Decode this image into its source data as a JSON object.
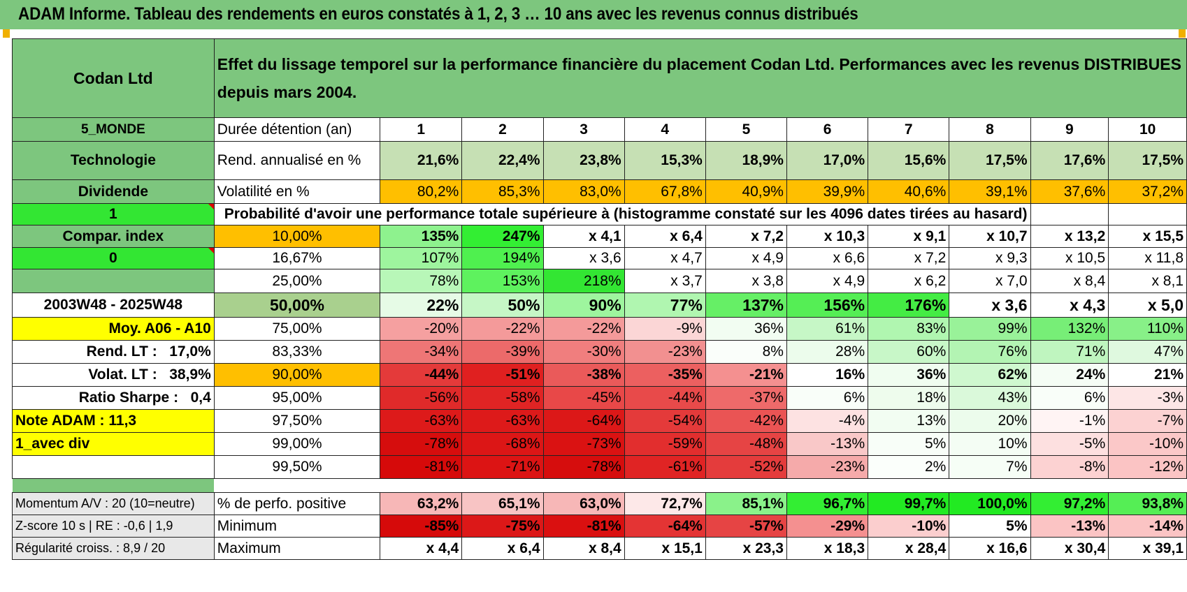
{
  "header": {
    "title": "ADAM Informe. Tableau des rendements en euros constatés à 1, 2, 3 … 10 ans avec les revenus connus distribués"
  },
  "left": {
    "company": "Codan Ltd",
    "region": "5_MONDE",
    "sector": "Technologie",
    "dividend": "Dividende",
    "flag1": "1",
    "compar_index": "Compar. index",
    "flag0": "0",
    "period": "2003W48 - 2025W48",
    "moy": "Moy. A06 - A10",
    "rend_lt_label": "Rend. LT :",
    "rend_lt_value": "17,0%",
    "volat_lt_label": "Volat. LT :",
    "volat_lt_value": "38,9%",
    "sharpe_label": "Ratio Sharpe :",
    "sharpe_value": "0,4",
    "note_adam": "Note ADAM : 11,3",
    "avec_div": "1_avec div",
    "momentum": "Momentum A/V : 20 (10=neutre)",
    "zscore": "Z-score 10 s | RE : -0,6 | 1,9",
    "regularite": "Régularité croiss. : 8,9 / 20"
  },
  "main": {
    "title": "Effet du lissage temporel sur la performance financière du placement Codan Ltd. Performances avec les revenus DISTRIBUES depuis mars 2004.",
    "duree_label": "Durée détention (an)",
    "years": [
      "1",
      "2",
      "3",
      "4",
      "5",
      "6",
      "7",
      "8",
      "9",
      "10"
    ],
    "rend_label": "Rend. annualisé en %",
    "rend": [
      "21,6%",
      "22,4%",
      "23,8%",
      "15,3%",
      "18,9%",
      "17,0%",
      "15,6%",
      "17,5%",
      "17,6%",
      "17,5%"
    ],
    "vol_label": "Volatilité en %",
    "vol": [
      "80,2%",
      "85,3%",
      "83,0%",
      "67,8%",
      "40,9%",
      "39,9%",
      "40,6%",
      "39,1%",
      "37,6%",
      "37,2%"
    ],
    "proba_title": "Probabilité d'avoir une performance totale supérieure à (histogramme constaté sur les 4096 dates tirées au hasard)",
    "prob_rows": [
      {
        "p": "10,00%",
        "v": [
          "135%",
          "247%",
          "x 4,1",
          "x 6,4",
          "x 7,2",
          "x 10,3",
          "x 9,1",
          "x 10,7",
          "x 13,2",
          "x 15,5"
        ]
      },
      {
        "p": "16,67%",
        "v": [
          "107%",
          "194%",
          "x 3,6",
          "x 4,7",
          "x 4,9",
          "x 6,6",
          "x 7,2",
          "x 9,3",
          "x 10,5",
          "x 11,8"
        ]
      },
      {
        "p": "25,00%",
        "v": [
          "78%",
          "153%",
          "218%",
          "x 3,7",
          "x 3,8",
          "x 4,9",
          "x 6,2",
          "x 7,0",
          "x 8,4",
          "x 8,1"
        ]
      },
      {
        "p": "50,00%",
        "v": [
          "22%",
          "50%",
          "90%",
          "77%",
          "137%",
          "156%",
          "176%",
          "x 3,6",
          "x 4,3",
          "x 5,0"
        ]
      },
      {
        "p": "75,00%",
        "v": [
          "-20%",
          "-22%",
          "-22%",
          "-9%",
          "36%",
          "61%",
          "83%",
          "99%",
          "132%",
          "110%"
        ]
      },
      {
        "p": "83,33%",
        "v": [
          "-34%",
          "-39%",
          "-30%",
          "-23%",
          "8%",
          "28%",
          "60%",
          "76%",
          "71%",
          "47%"
        ]
      },
      {
        "p": "90,00%",
        "v": [
          "-44%",
          "-51%",
          "-38%",
          "-35%",
          "-21%",
          "16%",
          "36%",
          "62%",
          "24%",
          "21%"
        ]
      },
      {
        "p": "95,00%",
        "v": [
          "-56%",
          "-58%",
          "-45%",
          "-44%",
          "-37%",
          "6%",
          "18%",
          "43%",
          "6%",
          "-3%"
        ]
      },
      {
        "p": "97,50%",
        "v": [
          "-63%",
          "-63%",
          "-64%",
          "-54%",
          "-42%",
          "-4%",
          "13%",
          "20%",
          "-1%",
          "-7%"
        ]
      },
      {
        "p": "99,00%",
        "v": [
          "-78%",
          "-68%",
          "-73%",
          "-59%",
          "-48%",
          "-13%",
          "5%",
          "10%",
          "-5%",
          "-10%"
        ]
      },
      {
        "p": "99,50%",
        "v": [
          "-81%",
          "-71%",
          "-78%",
          "-61%",
          "-52%",
          "-23%",
          "2%",
          "7%",
          "-8%",
          "-12%"
        ]
      }
    ],
    "pos_label": "% de perfo. positive",
    "pos": [
      "63,2%",
      "65,1%",
      "63,0%",
      "72,7%",
      "85,1%",
      "96,7%",
      "99,7%",
      "100,0%",
      "97,2%",
      "93,8%"
    ],
    "min_label": "Minimum",
    "min": [
      "-85%",
      "-75%",
      "-81%",
      "-64%",
      "-57%",
      "-29%",
      "-10%",
      "5%",
      "-13%",
      "-14%"
    ],
    "max_label": "Maximum",
    "max": [
      "x 4,4",
      "x 6,4",
      "x 8,4",
      "x 15,1",
      "x 23,3",
      "x 18,3",
      "x 28,4",
      "x 16,6",
      "x 30,4",
      "x 39,1"
    ]
  },
  "colors": {
    "header_green": "#7dc67e",
    "bright_green": "#33e633",
    "orange": "#ffbf00",
    "yellow": "#ffff00",
    "label_red": "#e00000",
    "rend_green": "#c6e0b4",
    "prob_fills": [
      [
        "#8ef28e",
        "#33ee33",
        "#ffffff",
        "#ffffff",
        "#ffffff",
        "#ffffff",
        "#ffffff",
        "#ffffff",
        "#ffffff",
        "#ffffff"
      ],
      [
        "#9ef59e",
        "#4ff04f",
        "#ffffff",
        "#ffffff",
        "#ffffff",
        "#ffffff",
        "#ffffff",
        "#ffffff",
        "#ffffff",
        "#ffffff"
      ],
      [
        "#b8f7b8",
        "#5ef25e",
        "#33e633",
        "#ffffff",
        "#ffffff",
        "#ffffff",
        "#ffffff",
        "#ffffff",
        "#ffffff",
        "#ffffff"
      ],
      [
        "#e6fbe6",
        "#c6f7c6",
        "#9ef59e",
        "#b0f6b0",
        "#66ef66",
        "#55ee55",
        "#44ec44",
        "#ffffff",
        "#ffffff",
        "#ffffff"
      ],
      [
        "#f5a0a0",
        "#f49a9a",
        "#f49a9a",
        "#fbd6d6",
        "#f2fdf2",
        "#c6f7c6",
        "#b0f6b0",
        "#99f299",
        "#77ee77",
        "#88f088"
      ],
      [
        "#ee7676",
        "#ec6a6a",
        "#f07e7e",
        "#f29090",
        "#fafefa",
        "#ecfcec",
        "#c8f7c8",
        "#b3f4b3",
        "#bff5bf",
        "#dff9df"
      ],
      [
        "#e43a3a",
        "#e02020",
        "#ea5a5a",
        "#ec6060",
        "#f49090",
        "#ffffff",
        "#f0fdf0",
        "#cff8cf",
        "#f5fdf5",
        "#ffffff"
      ],
      [
        "#e02a2a",
        "#e02424",
        "#e84848",
        "#e84a4a",
        "#ee6a6a",
        "#f9fef9",
        "#eefced",
        "#daf9da",
        "#f9fef9",
        "#fde6e6"
      ],
      [
        "#dd1a1a",
        "#dd1a1a",
        "#dc1818",
        "#e43a3a",
        "#ea5454",
        "#fde2e2",
        "#f2fdf2",
        "#ecfcec",
        "#fff4f4",
        "#fcd2d2"
      ],
      [
        "#d60d0d",
        "#dc1616",
        "#da1212",
        "#e22e2e",
        "#e64444",
        "#f9c8c8",
        "#f8fef8",
        "#f4fdf4",
        "#fde0e0",
        "#fbc8c8"
      ],
      [
        "#d60a0a",
        "#dc1414",
        "#d60d0d",
        "#e02424",
        "#e43c3c",
        "#f5aaaa",
        "#fbfffb",
        "#f6fef6",
        "#fcd2d2",
        "#fbc4c4"
      ]
    ],
    "pos_fills": [
      "#f7b7b7",
      "#f8c4c4",
      "#f7b7b7",
      "#fde8e8",
      "#8af28a",
      "#33ee33",
      "#22ea22",
      "#22ea22",
      "#33ee33",
      "#55ee55"
    ],
    "min_fills": [
      "#d60a0a",
      "#dc1818",
      "#da1010",
      "#e43434",
      "#e64444",
      "#f49090",
      "#fbcece",
      "#ffffff",
      "#fbc4c4",
      "#fbc4c4"
    ]
  }
}
